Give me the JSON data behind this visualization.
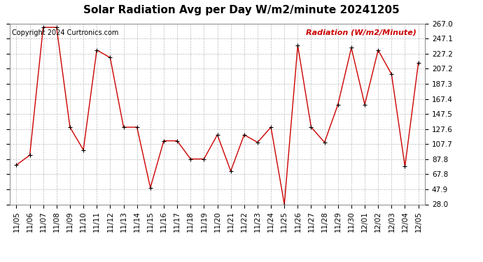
{
  "title": "Solar Radiation Avg per Day W/m2/minute 20241205",
  "copyright": "Copyright 2024 Curtronics.com",
  "ylabel": "Radiation (W/m2/Minute)",
  "dates": [
    "11/05",
    "11/06",
    "11/07",
    "11/08",
    "11/09",
    "11/10",
    "11/11",
    "11/12",
    "11/13",
    "11/14",
    "11/15",
    "11/16",
    "11/17",
    "11/18",
    "11/19",
    "11/20",
    "11/21",
    "11/22",
    "11/23",
    "11/24",
    "11/25",
    "11/26",
    "11/27",
    "11/28",
    "11/29",
    "11/30",
    "12/01",
    "12/02",
    "12/03",
    "12/04",
    "12/05"
  ],
  "values": [
    80,
    93,
    262,
    262,
    130,
    100,
    232,
    222,
    130,
    130,
    50,
    112,
    112,
    88,
    88,
    120,
    72,
    120,
    110,
    130,
    28,
    238,
    130,
    110,
    160,
    235,
    160,
    232,
    200,
    78,
    215
  ],
  "ylim_min": 28.0,
  "ylim_max": 267.0,
  "yticks": [
    28.0,
    47.9,
    67.8,
    87.8,
    107.7,
    127.6,
    147.5,
    167.4,
    187.3,
    207.2,
    227.2,
    247.1,
    267.0
  ],
  "line_color": "#cc0000",
  "marker_color": "#000000",
  "grid_color": "#bbbbbb",
  "background_color": "#ffffff",
  "title_fontsize": 11,
  "label_fontsize": 8,
  "tick_fontsize": 7.5,
  "copyright_fontsize": 7,
  "ylabel_color": "#cc0000"
}
